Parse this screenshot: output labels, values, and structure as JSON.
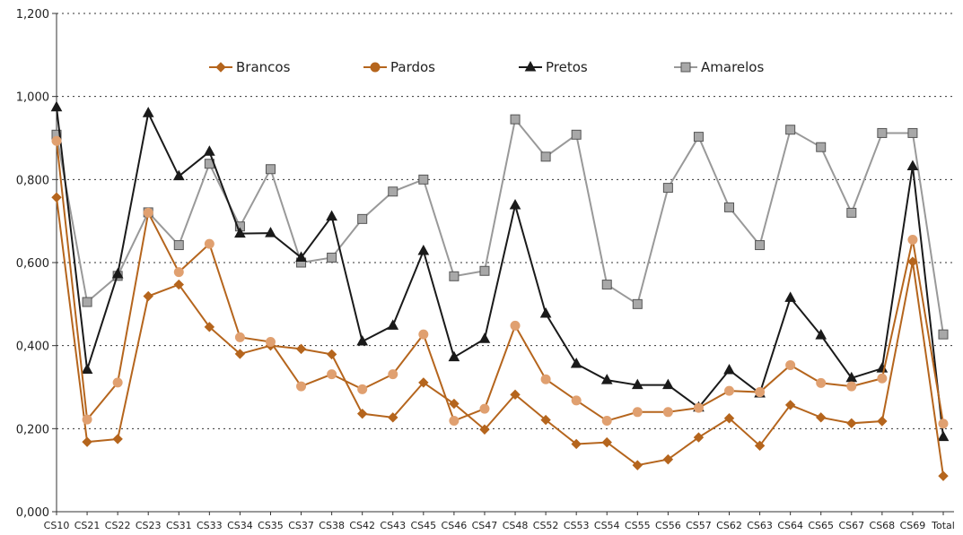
{
  "chart_data": {
    "type": "line",
    "title": "",
    "xlabel": "",
    "ylabel": "",
    "ylim": [
      0,
      1.2
    ],
    "yticks": [
      {
        "value": 0,
        "label": "0,000"
      },
      {
        "value": 0.2,
        "label": "0,200"
      },
      {
        "value": 0.4,
        "label": "0,400"
      },
      {
        "value": 0.6,
        "label": "0,600"
      },
      {
        "value": 0.8,
        "label": "0,800"
      },
      {
        "value": 1.0,
        "label": "1,000"
      },
      {
        "value": 1.2,
        "label": "1,200"
      }
    ],
    "grid": true,
    "legend_position": "top",
    "categories": [
      "CS10",
      "CS21",
      "CS22",
      "CS23",
      "CS31",
      "CS33",
      "CS34",
      "CS35",
      "CS37",
      "CS38",
      "CS42",
      "CS43",
      "CS45",
      "CS46",
      "CS47",
      "CS48",
      "CS52",
      "CS53",
      "CS54",
      "CS55",
      "CS56",
      "CS57",
      "CS62",
      "CS63",
      "CS64",
      "CS65",
      "CS67",
      "CS68",
      "CS69",
      "Total"
    ],
    "series": [
      {
        "name": "Brancos",
        "color": "#b5651d",
        "marker": "diamond",
        "values": [
          0.757,
          0.168,
          0.175,
          0.519,
          0.547,
          0.445,
          0.38,
          0.4,
          0.392,
          0.379,
          0.236,
          0.227,
          0.311,
          0.26,
          0.198,
          0.282,
          0.221,
          0.163,
          0.167,
          0.112,
          0.126,
          0.179,
          0.225,
          0.159,
          0.257,
          0.227,
          0.213,
          0.218,
          0.602,
          0.086
        ]
      },
      {
        "name": "Pardos",
        "color": "#b5651d",
        "marker": "circle",
        "values": [
          0.893,
          0.222,
          0.311,
          0.72,
          0.577,
          0.645,
          0.42,
          0.409,
          0.302,
          0.331,
          0.295,
          0.331,
          0.427,
          0.219,
          0.248,
          0.448,
          0.319,
          0.268,
          0.219,
          0.24,
          0.24,
          0.25,
          0.291,
          0.288,
          0.353,
          0.31,
          0.302,
          0.321,
          0.655,
          0.212
        ]
      },
      {
        "name": "Pretos",
        "color": "#1a1a1a",
        "marker": "triangle",
        "values": [
          0.974,
          0.342,
          0.572,
          0.96,
          0.808,
          0.867,
          0.67,
          0.671,
          0.612,
          0.711,
          0.41,
          0.448,
          0.628,
          0.372,
          0.416,
          0.738,
          0.477,
          0.356,
          0.317,
          0.305,
          0.305,
          0.251,
          0.341,
          0.285,
          0.515,
          0.425,
          0.322,
          0.345,
          0.832,
          0.18
        ]
      },
      {
        "name": "Amarelos",
        "color": "#999999",
        "marker": "square",
        "values": [
          0.908,
          0.505,
          0.568,
          0.721,
          0.642,
          0.838,
          0.687,
          0.825,
          0.6,
          0.612,
          0.705,
          0.771,
          0.8,
          0.567,
          0.58,
          0.945,
          0.855,
          0.908,
          0.547,
          0.5,
          0.78,
          0.903,
          0.733,
          0.642,
          0.92,
          0.878,
          0.72,
          0.912,
          0.912,
          0.427
        ]
      }
    ]
  }
}
